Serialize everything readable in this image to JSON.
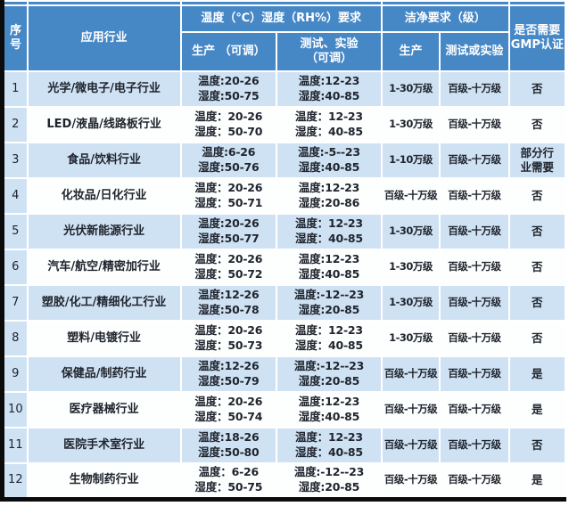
{
  "colors": {
    "header-blue": "#4687c6",
    "row-blue": "#cfe2f4",
    "row-white": "#fdfefe",
    "text-dark": "#20252e",
    "frame-black": "#0b0b0b",
    "frame-right": "#1c3c64"
  },
  "table": {
    "header": {
      "col_no": "序号",
      "col_industry": "应用行业",
      "group_temp": "温度（℃）湿度（RH%）要求",
      "temp_sub_prod": "生产 （可调）",
      "temp_sub_test_line1": "测试、实验",
      "temp_sub_test_line2": "（可调）",
      "group_clean": "洁净要求（级）",
      "clean_sub_prod": "生产",
      "clean_sub_test": "测试或实验",
      "col_gmp_line1": "是否需要",
      "col_gmp_line2": "GMP认证"
    },
    "rows": [
      {
        "no": "1",
        "industry": "光学/微电子/电子行业",
        "prod": [
          "温度:20-26",
          "湿度:50-75"
        ],
        "test": [
          "温度:12-23",
          "湿度:40-85"
        ],
        "clean_prod": "1-30万级",
        "clean_test": "百级-十万级",
        "gmp": "否"
      },
      {
        "no": "2",
        "industry": "LED/液晶/线路板行业",
        "prod": [
          "温度：20-26",
          "湿度：50-70"
        ],
        "test": [
          "温度：12-23",
          "湿度：40-85"
        ],
        "clean_prod": "1-30万级",
        "clean_test": "百级-十万级",
        "gmp": "否"
      },
      {
        "no": "3",
        "industry": "食品/饮料行业",
        "prod": [
          "温度:6-26",
          "湿度:50-76"
        ],
        "test": [
          "温度:-5--23",
          "湿度:40-85"
        ],
        "clean_prod": "1-10万级",
        "clean_test": "百级-十万级",
        "gmp": "部分行业需要"
      },
      {
        "no": "4",
        "industry": "化妆品/日化行业",
        "prod": [
          "温度：20-26",
          "湿度：50-71"
        ],
        "test": [
          "温度:12-23",
          "湿度:20-86"
        ],
        "clean_prod": "百级-十万级",
        "clean_test": "百级-十万级",
        "gmp": "否"
      },
      {
        "no": "5",
        "industry": "光伏新能源行业",
        "prod": [
          "温度:20-26",
          "湿度:50-77"
        ],
        "test": [
          "温度：12-23",
          "湿度：40-85"
        ],
        "clean_prod": "1-30万级",
        "clean_test": "百级-十万级",
        "gmp": "否"
      },
      {
        "no": "6",
        "industry": "汽车/航空/精密加行业",
        "prod": [
          "温度：20-26",
          "湿度：50-72"
        ],
        "test": [
          "温度:12-23",
          "湿度:40-85"
        ],
        "clean_prod": "1-30万级",
        "clean_test": "百级-十万级",
        "gmp": "否"
      },
      {
        "no": "7",
        "industry": "塑胶/化工/精细化工行业",
        "prod": [
          "温度:12-26",
          "湿度:50-78"
        ],
        "test": [
          "温度:-12--23",
          "湿度:20-85"
        ],
        "clean_prod": "1-30万级",
        "clean_test": "百级-十万级",
        "gmp": "否"
      },
      {
        "no": "8",
        "industry": "塑料/电镀行业",
        "prod": [
          "温度：20-26",
          "湿度：50-73"
        ],
        "test": [
          "温度：12-23",
          "湿度：40-85"
        ],
        "clean_prod": "1-30万级",
        "clean_test": "百级-十万级",
        "gmp": "否"
      },
      {
        "no": "9",
        "industry": "保健品/制药行业",
        "prod": [
          "温度:12-26",
          "湿度:50-79"
        ],
        "test": [
          "温度:-12--23",
          "湿度:20-85"
        ],
        "clean_prod": "百级-十万级",
        "clean_test": "百级-十万级",
        "gmp": "是"
      },
      {
        "no": "10",
        "industry": "医疗器械行业",
        "prod": [
          "温度：20-26",
          "湿度：50-74"
        ],
        "test": [
          "温度:12-23",
          "湿度:40-85"
        ],
        "clean_prod": "百级-十万级",
        "clean_test": "百级-十万级",
        "gmp": "是"
      },
      {
        "no": "11",
        "industry": "医院手术室行业",
        "prod": [
          "温度:18-26",
          "湿度:50-80"
        ],
        "test": [
          "温度：12-23",
          "湿度：40-85"
        ],
        "clean_prod": "百级-十万级",
        "clean_test": "百级-十万级",
        "gmp": "否"
      },
      {
        "no": "12",
        "industry": "生物制药行业",
        "prod": [
          "温度：6-26",
          "湿度：50-75"
        ],
        "test": [
          "温度:-12--23",
          "湿度:20-85"
        ],
        "clean_prod": "百级-十万级",
        "clean_test": "百级-十万级",
        "gmp": "是"
      }
    ]
  }
}
